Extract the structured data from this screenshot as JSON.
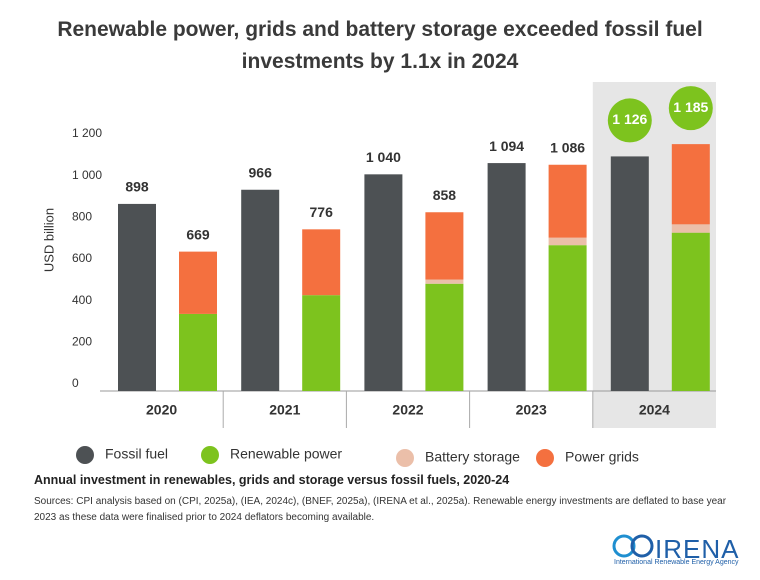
{
  "title": "Renewable power, grids and battery storage exceeded fossil fuel investments by 1.1x in 2024",
  "chart_data": {
    "type": "bar",
    "y_label": "USD billion",
    "categories": [
      "2020",
      "2021",
      "2022",
      "2023",
      "2024"
    ],
    "series": [
      {
        "name": "Fossil fuel",
        "color": "#4d5154",
        "group": 0,
        "values": [
          898,
          966,
          1040,
          1094,
          1126
        ],
        "value_labels": [
          "898",
          "966",
          "1 040",
          "1 094",
          "1 126"
        ]
      },
      {
        "name": "Renewable power",
        "color": "#7dc31e",
        "group": 1,
        "values": [
          370,
          460,
          515,
          700,
          760
        ]
      },
      {
        "name": "Battery storage",
        "color": "#ebbfa9",
        "group": 1,
        "values": [
          0,
          0,
          20,
          36,
          40
        ]
      },
      {
        "name": "Power grids",
        "color": "#f4703f",
        "group": 1,
        "values": [
          299,
          316,
          323,
          350,
          385
        ]
      }
    ],
    "totals": {
      "values": [
        669,
        776,
        858,
        1086,
        1185
      ],
      "value_labels": [
        "669",
        "776",
        "858",
        "1 086",
        "1 185"
      ]
    },
    "highlight": 4,
    "ylim": [
      0,
      1200
    ],
    "yticks": [
      0,
      200,
      400,
      600,
      800,
      {
        "value": 1000,
        "label": "1 000"
      },
      {
        "value": 1200,
        "label": "1 200"
      }
    ]
  },
  "caption": "Annual investment in renewables, grids and storage versus fossil fuels, 2020-24",
  "sources": "Sources: CPI analysis based on (CPI, 2025a), (IEA, 2024c), (BNEF, 2025a), (IRENA et al., 2025a). Renewable energy investments are deflated to base year 2023 as these data were finalised prior to 2024 deflators becoming available.",
  "logo": {
    "name": "IRENA",
    "agency": "International Renewable Energy Agency"
  }
}
